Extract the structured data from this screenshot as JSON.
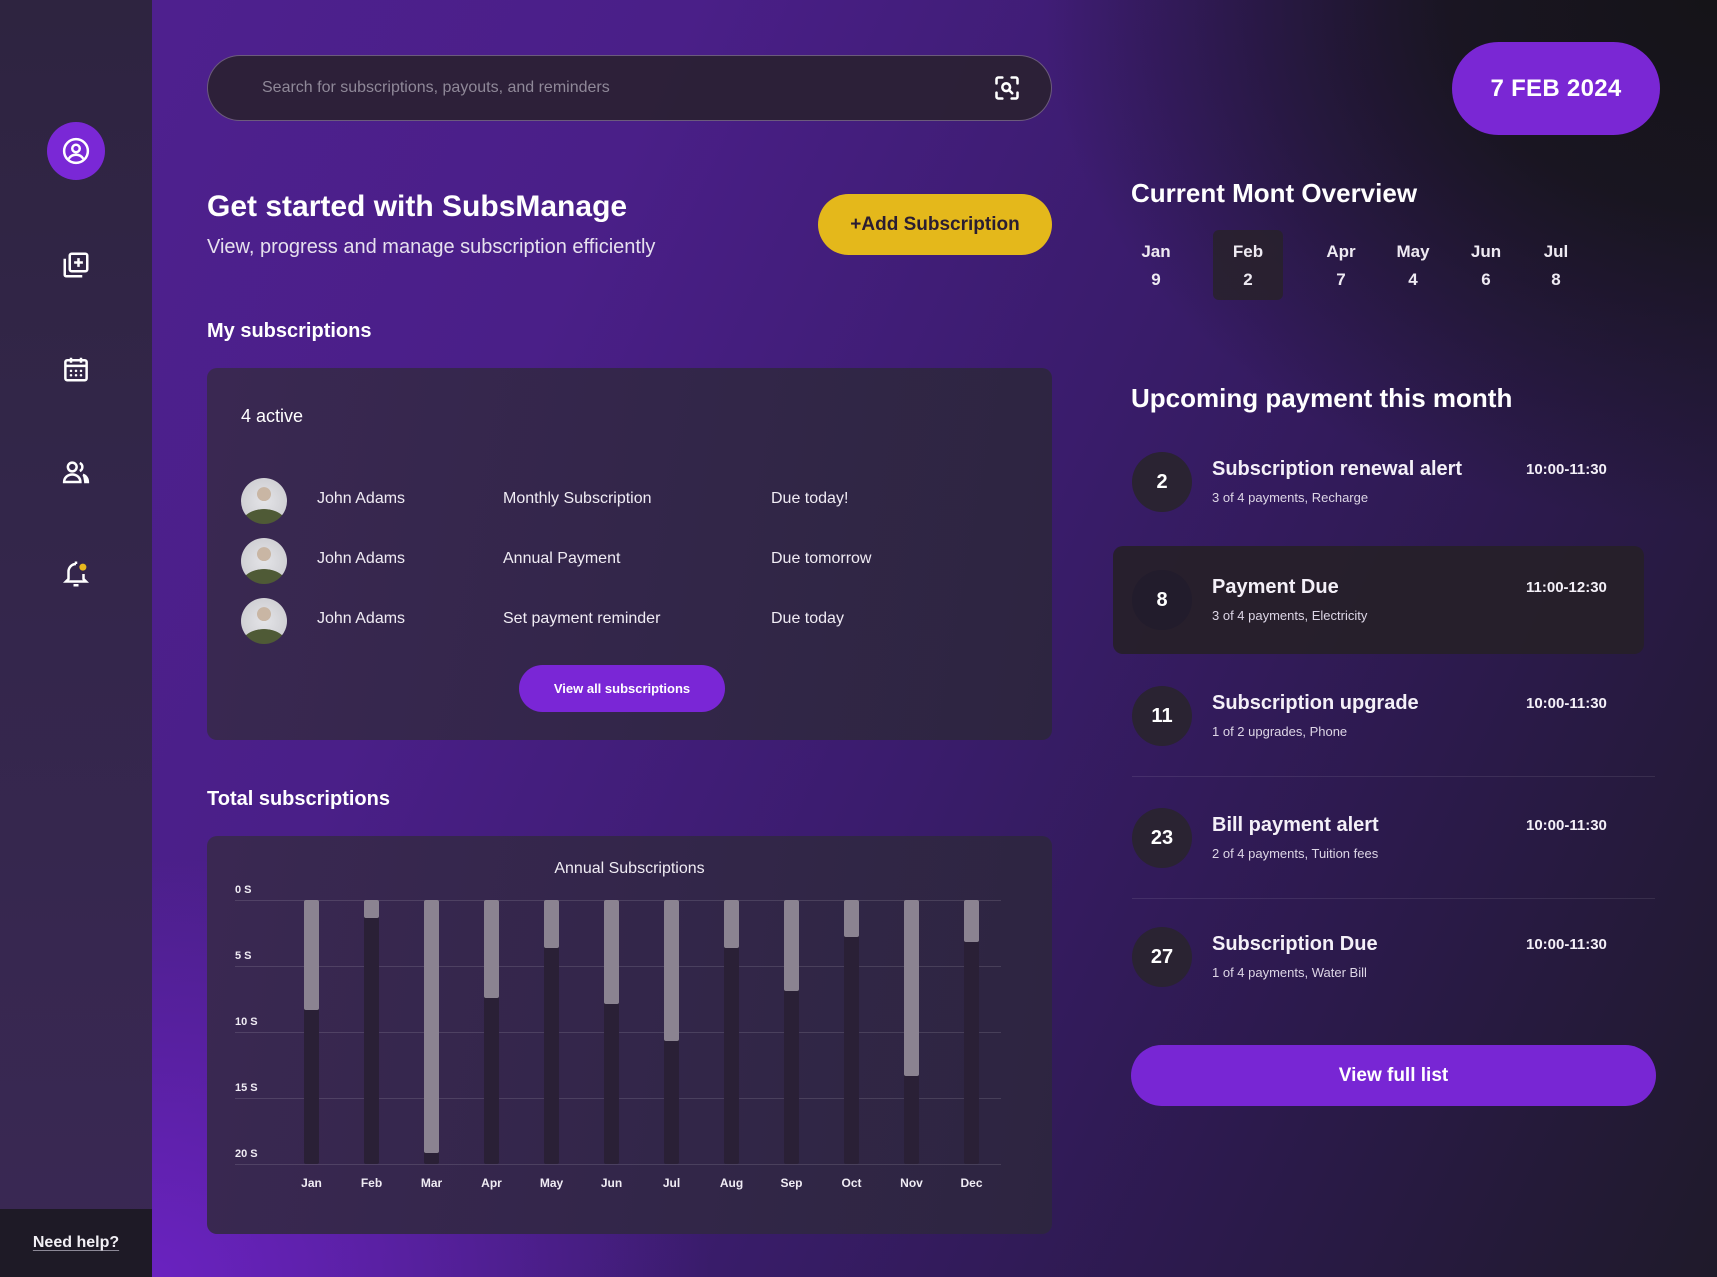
{
  "sidebar": {
    "items": [
      {
        "name": "profile",
        "icon": "user-circle-icon",
        "active": true
      },
      {
        "name": "add-subscription",
        "icon": "add-copy-icon"
      },
      {
        "name": "calendar",
        "icon": "calendar-icon"
      },
      {
        "name": "users",
        "icon": "users-icon"
      },
      {
        "name": "notifications",
        "icon": "bell-icon",
        "badge_color": "#e8b81e"
      }
    ],
    "help_label": "Need help?"
  },
  "search": {
    "placeholder": "Search for subscriptions, payouts, and reminders",
    "value": "",
    "icon": "scan-search-icon"
  },
  "date_badge": "7 FEB 2024",
  "hero": {
    "title": "Get started with SubsManage",
    "subtitle": "View, progress and manage subscription efficiently",
    "add_button": "+Add Subscription"
  },
  "my_subscriptions": {
    "title": "My subscriptions",
    "active_label": "4 active",
    "rows": [
      {
        "name": "John Adams",
        "type": "Monthly Subscription",
        "due": "Due today!"
      },
      {
        "name": "John Adams",
        "type": "Annual Payment",
        "due": "Due tomorrow"
      },
      {
        "name": "John Adams",
        "type": "Set payment reminder",
        "due": "Due today"
      }
    ],
    "view_all_button": "View all subscriptions"
  },
  "total_subscriptions": {
    "title": "Total subscriptions"
  },
  "chart_data": {
    "type": "bar",
    "title": "Annual Subscriptions",
    "xlabel": "",
    "ylabel": "",
    "categories": [
      "Jan",
      "Feb",
      "Mar",
      "Apr",
      "May",
      "Jun",
      "Jul",
      "Aug",
      "Sep",
      "Oct",
      "Nov",
      "Dec"
    ],
    "values": [
      8.3,
      1.4,
      19.2,
      7.4,
      3.6,
      7.9,
      10.7,
      3.6,
      6.9,
      2.8,
      13.3,
      3.2
    ],
    "y_ticks": [
      "0 S",
      "5 S",
      "10 S",
      "15 S",
      "20 S"
    ],
    "ylim": [
      0,
      20
    ],
    "y_inverted": true,
    "grid": true,
    "legend": null,
    "colors": {
      "fill": "#8b8391",
      "track": "#2a2036"
    }
  },
  "overview": {
    "title": "Current Mont Overview",
    "months": [
      {
        "label": "Jan",
        "count": "9",
        "selected": false
      },
      {
        "label": "Feb",
        "count": "2",
        "selected": true
      },
      {
        "label": "Apr",
        "count": "7",
        "selected": false
      },
      {
        "label": "May",
        "count": "4",
        "selected": false
      },
      {
        "label": "Jun",
        "count": "6",
        "selected": false
      },
      {
        "label": "Jul",
        "count": "8",
        "selected": false
      }
    ]
  },
  "upcoming": {
    "title": "Upcoming payment this month",
    "items": [
      {
        "day": "2",
        "title": "Subscription renewal alert",
        "detail": "3 of 4 payments, Recharge",
        "time": "10:00-11:30",
        "highlight": false
      },
      {
        "day": "8",
        "title": "Payment Due",
        "detail": "3 of 4 payments, Electricity",
        "time": "11:00-12:30",
        "highlight": true
      },
      {
        "day": "11",
        "title": "Subscription upgrade",
        "detail": "1 of 2 upgrades, Phone",
        "time": "10:00-11:30",
        "highlight": false
      },
      {
        "day": "23",
        "title": "Bill payment alert",
        "detail": "2 of 4 payments, Tuition fees",
        "time": "10:00-11:30",
        "highlight": false
      },
      {
        "day": "27",
        "title": "Subscription Due",
        "detail": "1 of 4 payments, Water Bill",
        "time": "10:00-11:30",
        "highlight": false
      }
    ],
    "view_full_button": "View full list"
  },
  "colors": {
    "accent": "#7a27d4",
    "cta": "#e4b81b",
    "sidebar": "#33264a",
    "card": "#33264a"
  }
}
